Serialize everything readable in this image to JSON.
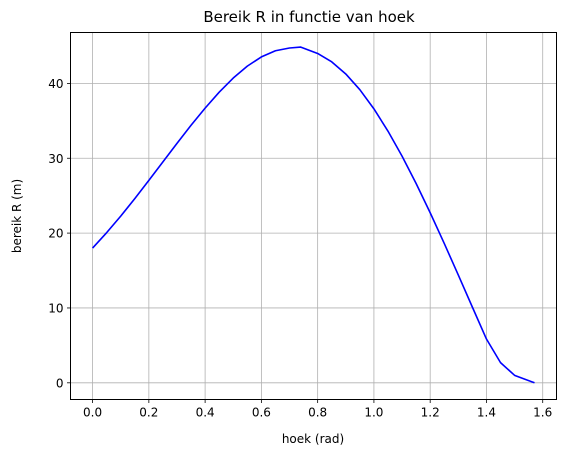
{
  "chart_data": {
    "type": "line",
    "title": "Bereik R in functie van hoek",
    "xlabel": "hoek (rad)",
    "ylabel": "bereik R (m)",
    "xlim": [
      -0.0785,
      1.649
    ],
    "ylim": [
      -2.23,
      46.8
    ],
    "grid": true,
    "xticks": [
      0.0,
      0.2,
      0.4,
      0.6,
      0.8,
      1.0,
      1.2,
      1.4,
      1.6
    ],
    "xtick_labels": [
      "0.0",
      "0.2",
      "0.4",
      "0.6",
      "0.8",
      "1.0",
      "1.2",
      "1.4",
      "1.6"
    ],
    "yticks": [
      0,
      10,
      20,
      30,
      40
    ],
    "ytick_labels": [
      "0",
      "10",
      "20",
      "30",
      "40"
    ],
    "series": [
      {
        "name": "R",
        "color": "#0000ff",
        "x": [
          0.0,
          0.05,
          0.1,
          0.15,
          0.2,
          0.25,
          0.3,
          0.35,
          0.4,
          0.45,
          0.5,
          0.55,
          0.6,
          0.65,
          0.7,
          0.74,
          0.8,
          0.85,
          0.9,
          0.95,
          1.0,
          1.05,
          1.1,
          1.15,
          1.2,
          1.25,
          1.3,
          1.35,
          1.4,
          1.45,
          1.5,
          1.5708
        ],
        "y": [
          18.0,
          20.06,
          22.27,
          24.61,
          27.04,
          29.51,
          31.99,
          34.41,
          36.7,
          38.83,
          40.72,
          42.31,
          43.54,
          44.36,
          44.73,
          44.85,
          44.0,
          42.88,
          41.26,
          39.16,
          36.6,
          33.62,
          30.28,
          26.63,
          22.72,
          18.62,
          14.39,
          10.11,
          5.85,
          2.7,
          1.0,
          0.0
        ]
      }
    ]
  }
}
